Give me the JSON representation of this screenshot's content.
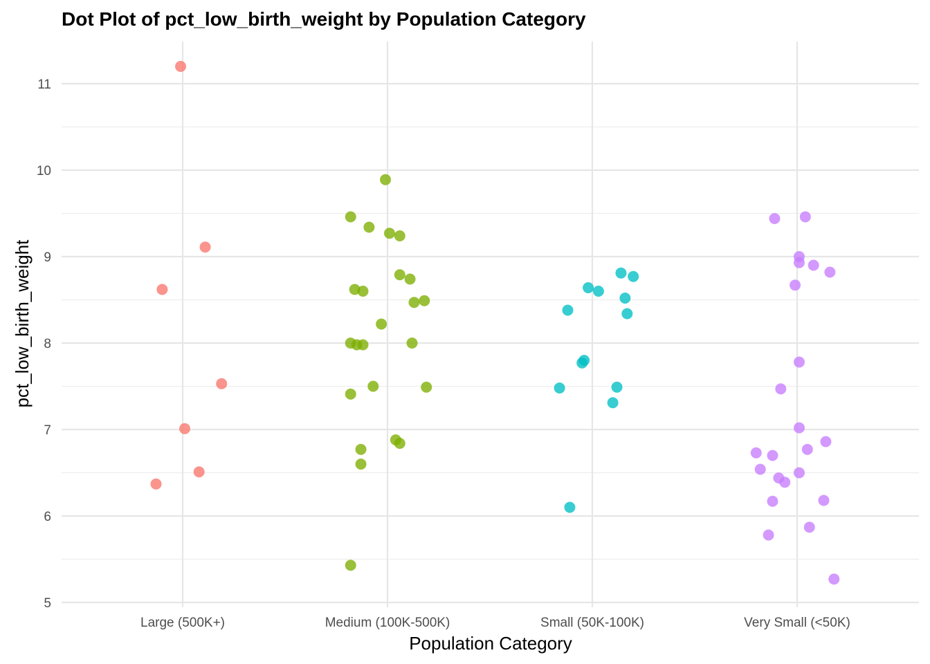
{
  "chart_data": {
    "type": "scatter",
    "title": "Dot Plot of pct_low_birth_weight by Population Category",
    "xlabel": "Population Category",
    "ylabel": "pct_low_birth_weight",
    "categories": [
      "Large (500K+)",
      "Medium (100K-500K)",
      "Small (50K-100K)",
      "Very Small (<50K)"
    ],
    "ylim": [
      4.95,
      11.4
    ],
    "yticks": [
      5,
      6,
      7,
      8,
      9,
      10,
      11
    ],
    "grid": true,
    "legend": "none",
    "series": [
      {
        "category": "Large (500K+)",
        "color": "#F8766D",
        "points": [
          {
            "jitter": -0.01,
            "y": 11.2
          },
          {
            "jitter": 0.11,
            "y": 9.11
          },
          {
            "jitter": -0.1,
            "y": 8.62
          },
          {
            "jitter": 0.19,
            "y": 7.53
          },
          {
            "jitter": 0.01,
            "y": 7.01
          },
          {
            "jitter": 0.08,
            "y": 6.51
          },
          {
            "jitter": -0.13,
            "y": 6.37
          }
        ]
      },
      {
        "category": "Medium (100K-500K)",
        "color": "#7CAE00",
        "points": [
          {
            "jitter": -0.01,
            "y": 9.89
          },
          {
            "jitter": -0.18,
            "y": 9.46
          },
          {
            "jitter": -0.09,
            "y": 9.34
          },
          {
            "jitter": 0.01,
            "y": 9.27
          },
          {
            "jitter": 0.06,
            "y": 9.24
          },
          {
            "jitter": 0.06,
            "y": 8.79
          },
          {
            "jitter": 0.11,
            "y": 8.74
          },
          {
            "jitter": -0.16,
            "y": 8.62
          },
          {
            "jitter": -0.12,
            "y": 8.6
          },
          {
            "jitter": 0.13,
            "y": 8.47
          },
          {
            "jitter": 0.18,
            "y": 8.49
          },
          {
            "jitter": -0.03,
            "y": 8.22
          },
          {
            "jitter": -0.18,
            "y": 8.0
          },
          {
            "jitter": -0.15,
            "y": 7.98
          },
          {
            "jitter": -0.12,
            "y": 7.98
          },
          {
            "jitter": 0.12,
            "y": 8.0
          },
          {
            "jitter": -0.07,
            "y": 7.5
          },
          {
            "jitter": 0.19,
            "y": 7.49
          },
          {
            "jitter": -0.18,
            "y": 7.41
          },
          {
            "jitter": 0.04,
            "y": 6.88
          },
          {
            "jitter": 0.06,
            "y": 6.84
          },
          {
            "jitter": -0.13,
            "y": 6.77
          },
          {
            "jitter": -0.13,
            "y": 6.6
          },
          {
            "jitter": -0.18,
            "y": 5.43
          }
        ]
      },
      {
        "category": "Small (50K-100K)",
        "color": "#00BFC4",
        "points": [
          {
            "jitter": 0.14,
            "y": 8.81
          },
          {
            "jitter": 0.2,
            "y": 8.77
          },
          {
            "jitter": -0.02,
            "y": 8.64
          },
          {
            "jitter": 0.03,
            "y": 8.6
          },
          {
            "jitter": 0.16,
            "y": 8.52
          },
          {
            "jitter": -0.12,
            "y": 8.38
          },
          {
            "jitter": 0.17,
            "y": 8.34
          },
          {
            "jitter": -0.04,
            "y": 7.8
          },
          {
            "jitter": -0.05,
            "y": 7.77
          },
          {
            "jitter": -0.16,
            "y": 7.48
          },
          {
            "jitter": 0.12,
            "y": 7.49
          },
          {
            "jitter": 0.1,
            "y": 7.31
          },
          {
            "jitter": -0.11,
            "y": 6.1
          }
        ]
      },
      {
        "category": "Very Small (<50K)",
        "color": "#C77CFF",
        "points": [
          {
            "jitter": -0.11,
            "y": 9.44
          },
          {
            "jitter": 0.04,
            "y": 9.46
          },
          {
            "jitter": 0.01,
            "y": 9.0
          },
          {
            "jitter": 0.01,
            "y": 8.93
          },
          {
            "jitter": 0.08,
            "y": 8.9
          },
          {
            "jitter": 0.16,
            "y": 8.82
          },
          {
            "jitter": -0.01,
            "y": 8.67
          },
          {
            "jitter": 0.01,
            "y": 7.78
          },
          {
            "jitter": -0.08,
            "y": 7.47
          },
          {
            "jitter": 0.01,
            "y": 7.02
          },
          {
            "jitter": 0.14,
            "y": 6.86
          },
          {
            "jitter": 0.05,
            "y": 6.77
          },
          {
            "jitter": -0.2,
            "y": 6.73
          },
          {
            "jitter": -0.12,
            "y": 6.7
          },
          {
            "jitter": -0.18,
            "y": 6.54
          },
          {
            "jitter": 0.01,
            "y": 6.5
          },
          {
            "jitter": -0.09,
            "y": 6.44
          },
          {
            "jitter": -0.06,
            "y": 6.39
          },
          {
            "jitter": -0.12,
            "y": 6.17
          },
          {
            "jitter": 0.13,
            "y": 6.18
          },
          {
            "jitter": 0.06,
            "y": 5.87
          },
          {
            "jitter": -0.14,
            "y": 5.78
          },
          {
            "jitter": 0.18,
            "y": 5.27
          }
        ]
      }
    ]
  }
}
